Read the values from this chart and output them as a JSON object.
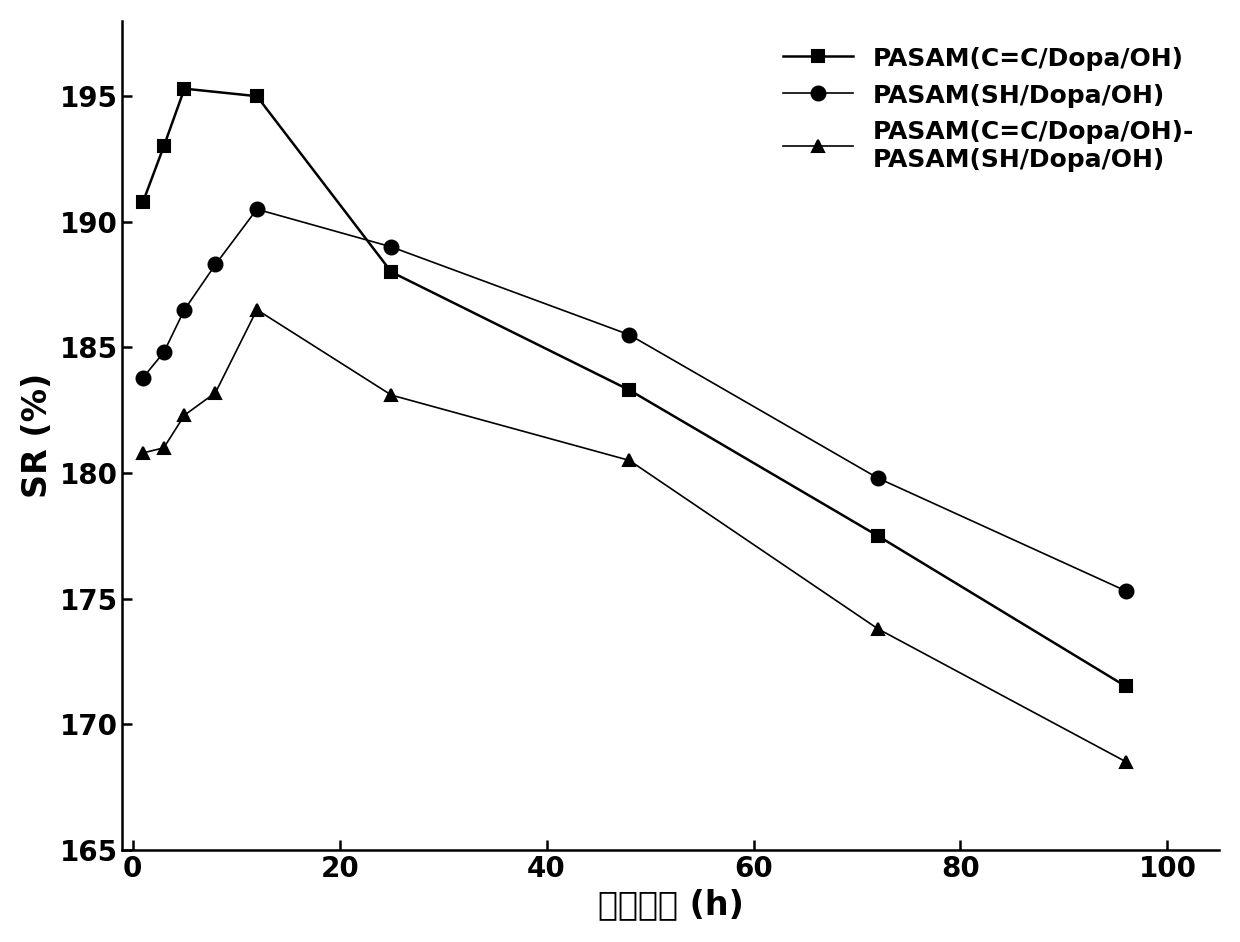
{
  "series": [
    {
      "label": "PASAM(C=C/Dopa/OH)",
      "x": [
        1,
        3,
        5,
        12,
        25,
        48,
        72,
        96
      ],
      "y": [
        190.8,
        193.0,
        195.3,
        195.0,
        188.0,
        183.3,
        177.5,
        171.5
      ],
      "marker": "s",
      "color": "#000000",
      "linewidth": 1.8,
      "markersize": 9,
      "linestyle": "-"
    },
    {
      "label": "PASAM(SH/Dopa/OH)",
      "x": [
        1,
        3,
        5,
        8,
        12,
        25,
        48,
        72,
        96
      ],
      "y": [
        183.8,
        184.8,
        186.5,
        188.3,
        190.5,
        189.0,
        185.5,
        179.8,
        175.3
      ],
      "marker": "o",
      "color": "#000000",
      "linewidth": 1.2,
      "markersize": 10,
      "linestyle": "-"
    },
    {
      "label": "PASAM(C=C/Dopa/OH)-\nPASAM(SH/Dopa/OH)",
      "x": [
        1,
        3,
        5,
        8,
        12,
        25,
        48,
        72,
        96
      ],
      "y": [
        180.8,
        181.0,
        182.3,
        183.2,
        186.5,
        183.1,
        180.5,
        173.8,
        168.5
      ],
      "marker": "^",
      "color": "#000000",
      "linewidth": 1.2,
      "markersize": 9,
      "linestyle": "-"
    }
  ],
  "xlabel": "浸泡时间 (h)",
  "ylabel": "SR (%)",
  "xlim": [
    -1,
    105
  ],
  "ylim": [
    165,
    198
  ],
  "xticks": [
    0,
    20,
    40,
    60,
    80,
    100
  ],
  "yticks": [
    165,
    170,
    175,
    180,
    185,
    190,
    195
  ],
  "xlabel_fontsize": 24,
  "ylabel_fontsize": 24,
  "tick_fontsize": 20,
  "legend_fontsize": 18,
  "background_color": "#ffffff"
}
